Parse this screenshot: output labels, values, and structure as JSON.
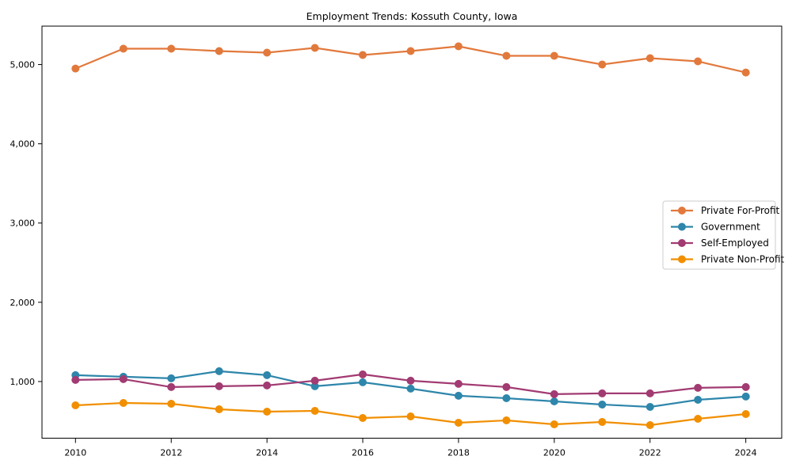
{
  "chart_data": {
    "type": "line",
    "title": "Employment Trends: Kossuth County, Iowa",
    "xlabel": "",
    "ylabel": "",
    "x": [
      2010,
      2011,
      2012,
      2013,
      2014,
      2015,
      2016,
      2017,
      2018,
      2019,
      2020,
      2021,
      2022,
      2023,
      2024
    ],
    "series": [
      {
        "name": "Private For-Profit",
        "color": "#E2793C",
        "values": [
          4950,
          5200,
          5200,
          5170,
          5150,
          5210,
          5120,
          5170,
          5230,
          5110,
          5110,
          5000,
          5080,
          5040,
          4900
        ]
      },
      {
        "name": "Government",
        "color": "#2E86AB",
        "values": [
          1080,
          1060,
          1040,
          1130,
          1080,
          940,
          990,
          910,
          820,
          790,
          750,
          710,
          680,
          770,
          810
        ]
      },
      {
        "name": "Self-Employed",
        "color": "#A23B72",
        "values": [
          1020,
          1030,
          930,
          940,
          950,
          1010,
          1090,
          1010,
          970,
          930,
          840,
          850,
          850,
          920,
          930
        ]
      },
      {
        "name": "Private Non-Profit",
        "color": "#F18F01",
        "values": [
          700,
          730,
          720,
          650,
          620,
          630,
          540,
          560,
          480,
          510,
          460,
          490,
          450,
          530,
          590
        ]
      }
    ],
    "xticks": [
      2010,
      2012,
      2014,
      2016,
      2018,
      2020,
      2022,
      2024
    ],
    "yticks": [
      1000,
      2000,
      3000,
      4000,
      5000
    ],
    "ytick_labels": [
      "1,000",
      "2,000",
      "3,000",
      "4,000",
      "5,000"
    ],
    "xlim": [
      2009.3,
      2024.75
    ],
    "ylim": [
      285,
      5485
    ],
    "grid": false,
    "legend_position": "center right",
    "marker": "o",
    "spine_color": "#000000",
    "background_color": "#ffffff"
  }
}
